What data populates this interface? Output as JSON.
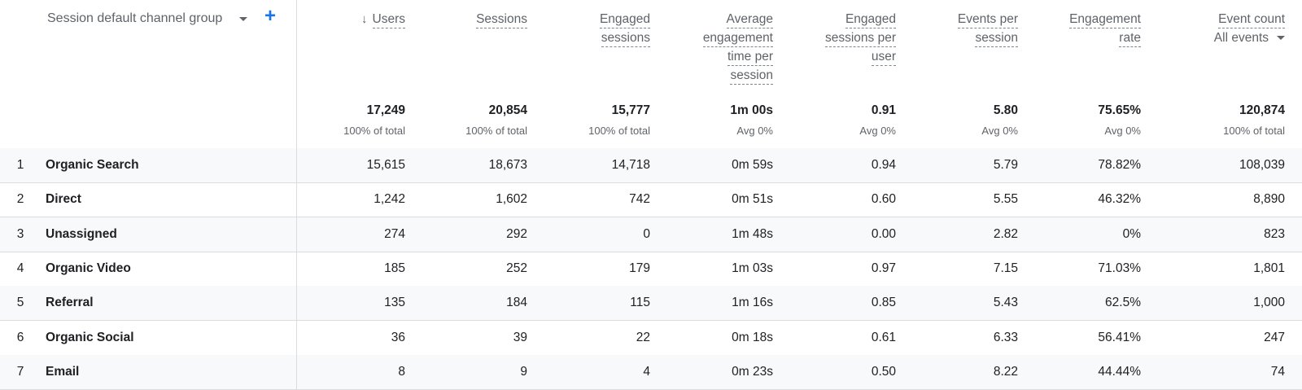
{
  "dimension": {
    "label": "Session default channel group",
    "caret_icon": "caret-down-icon",
    "add_icon": "plus-icon",
    "add_symbol": "+"
  },
  "sort_arrow": "↓",
  "metrics": [
    {
      "name_lines": [
        "Users"
      ],
      "total": "17,249",
      "sub": "100% of total",
      "sorted": true
    },
    {
      "name_lines": [
        "Sessions"
      ],
      "total": "20,854",
      "sub": "100% of total"
    },
    {
      "name_lines": [
        "Engaged",
        "sessions"
      ],
      "total": "15,777",
      "sub": "100% of total"
    },
    {
      "name_lines": [
        "Average",
        "engagement",
        "time per",
        "session"
      ],
      "total": "1m 00s",
      "sub": "Avg 0%"
    },
    {
      "name_lines": [
        "Engaged",
        "sessions per",
        "user"
      ],
      "total": "0.91",
      "sub": "Avg 0%"
    },
    {
      "name_lines": [
        "Events per",
        "session"
      ],
      "total": "5.80",
      "sub": "Avg 0%"
    },
    {
      "name_lines": [
        "Engagement",
        "rate"
      ],
      "total": "75.65%",
      "sub": "Avg 0%"
    },
    {
      "name_lines": [
        "Event count"
      ],
      "selector": "All events",
      "total": "120,874",
      "sub": "100% of total"
    }
  ],
  "rows": [
    {
      "index": "1",
      "channel": "Organic Search",
      "values": [
        "15,615",
        "18,673",
        "14,718",
        "0m 59s",
        "0.94",
        "5.79",
        "78.82%",
        "108,039"
      ]
    },
    {
      "index": "2",
      "channel": "Direct",
      "values": [
        "1,242",
        "1,602",
        "742",
        "0m 51s",
        "0.60",
        "5.55",
        "46.32%",
        "8,890"
      ]
    },
    {
      "index": "3",
      "channel": "Unassigned",
      "values": [
        "274",
        "292",
        "0",
        "1m 48s",
        "0.00",
        "2.82",
        "0%",
        "823"
      ]
    },
    {
      "index": "4",
      "channel": "Organic Video",
      "values": [
        "185",
        "252",
        "179",
        "1m 03s",
        "0.97",
        "7.15",
        "71.03%",
        "1,801"
      ]
    },
    {
      "index": "5",
      "channel": "Referral",
      "values": [
        "135",
        "184",
        "115",
        "1m 16s",
        "0.85",
        "5.43",
        "62.5%",
        "1,000"
      ]
    },
    {
      "index": "6",
      "channel": "Organic Social",
      "values": [
        "36",
        "39",
        "22",
        "0m 18s",
        "0.61",
        "6.33",
        "56.41%",
        "247"
      ]
    },
    {
      "index": "7",
      "channel": "Email",
      "values": [
        "8",
        "9",
        "4",
        "0m 23s",
        "0.50",
        "8.22",
        "44.44%",
        "74"
      ]
    }
  ]
}
